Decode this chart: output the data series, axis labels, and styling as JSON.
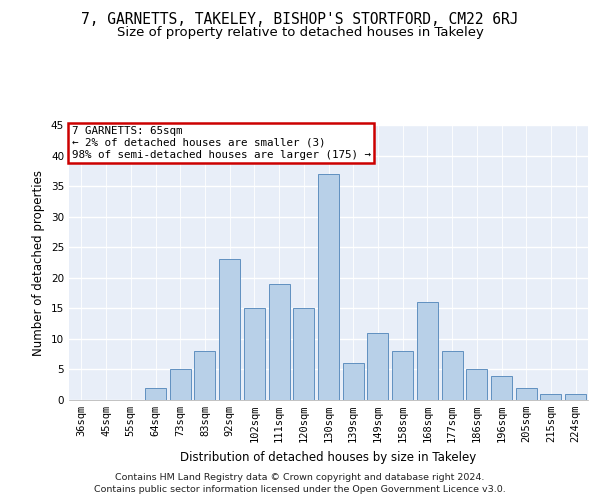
{
  "title1": "7, GARNETTS, TAKELEY, BISHOP'S STORTFORD, CM22 6RJ",
  "title2": "Size of property relative to detached houses in Takeley",
  "xlabel": "Distribution of detached houses by size in Takeley",
  "ylabel": "Number of detached properties",
  "categories": [
    "36sqm",
    "45sqm",
    "55sqm",
    "64sqm",
    "73sqm",
    "83sqm",
    "92sqm",
    "102sqm",
    "111sqm",
    "120sqm",
    "130sqm",
    "139sqm",
    "149sqm",
    "158sqm",
    "168sqm",
    "177sqm",
    "186sqm",
    "196sqm",
    "205sqm",
    "215sqm",
    "224sqm"
  ],
  "values": [
    0,
    0,
    0,
    2,
    5,
    8,
    23,
    15,
    19,
    15,
    37,
    6,
    11,
    8,
    16,
    8,
    5,
    4,
    2,
    1,
    1
  ],
  "bar_color": "#b8d0e8",
  "bar_edge_color": "#6090c0",
  "annotation_text": "7 GARNETTS: 65sqm\n← 2% of detached houses are smaller (3)\n98% of semi-detached houses are larger (175) →",
  "annotation_box_color": "#ffffff",
  "annotation_box_edge_color": "#cc0000",
  "footer1": "Contains HM Land Registry data © Crown copyright and database right 2024.",
  "footer2": "Contains public sector information licensed under the Open Government Licence v3.0.",
  "ylim": [
    0,
    45
  ],
  "yticks": [
    0,
    5,
    10,
    15,
    20,
    25,
    30,
    35,
    40,
    45
  ],
  "background_color": "#e8eef8",
  "grid_color": "#ffffff",
  "title1_fontsize": 10.5,
  "title2_fontsize": 9.5,
  "axis_label_fontsize": 8.5,
  "tick_fontsize": 7.5,
  "footer_fontsize": 6.8,
  "annotation_fontsize": 7.8
}
